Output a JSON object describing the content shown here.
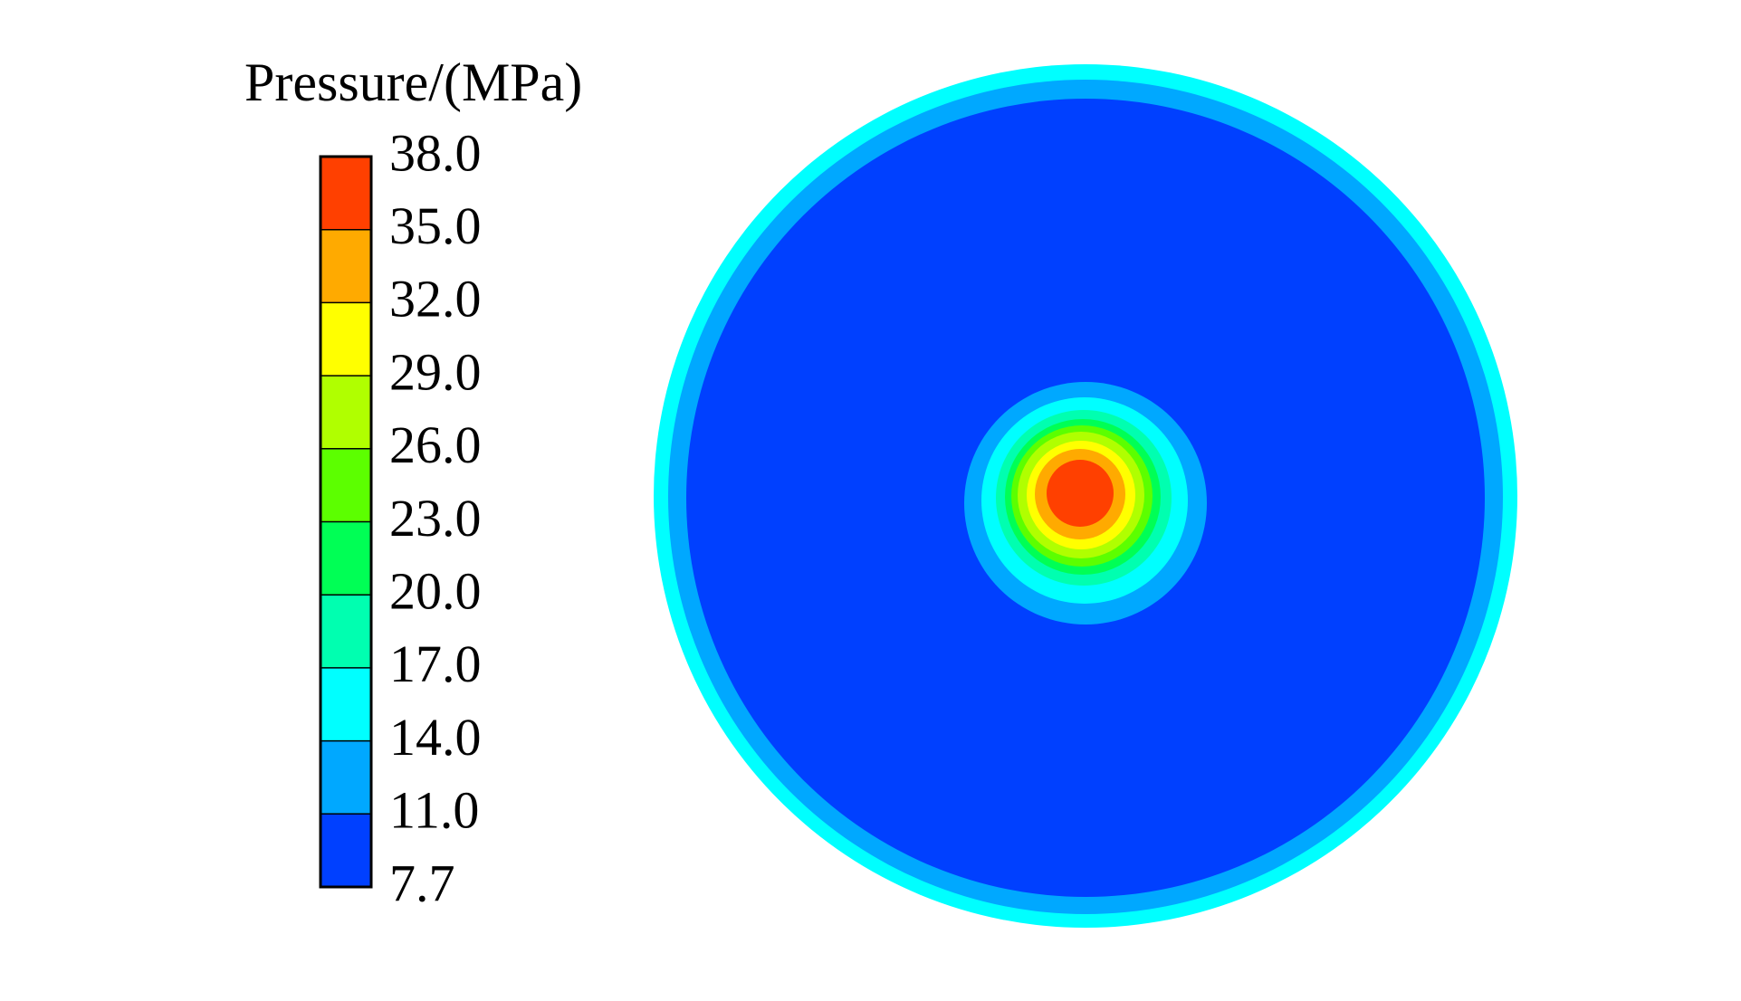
{
  "chart_data": {
    "type": "contour",
    "title": "Pressure/(MPa)",
    "levels": [
      7.7,
      {
        "value": 11,
        "label": "11.0"
      },
      {
        "value": 14,
        "label": "14.0"
      },
      {
        "value": 17,
        "label": "17.0"
      },
      {
        "value": 20,
        "label": "20.0"
      },
      {
        "value": 23,
        "label": "23.0"
      },
      {
        "value": 26,
        "label": "26.0"
      },
      {
        "value": 29,
        "label": "29.0"
      },
      {
        "value": 32,
        "label": "32.0"
      },
      {
        "value": 35,
        "label": "35.0"
      },
      {
        "value": 38,
        "label": "38.0"
      }
    ],
    "colors": [
      "#0040ff",
      "#00a8ff",
      "#00ffff",
      "#00ffb0",
      "#00ff55",
      "#5cff00",
      "#b0ff00",
      "#ffff00",
      "#ffaa00",
      "#ff4000"
    ]
  }
}
